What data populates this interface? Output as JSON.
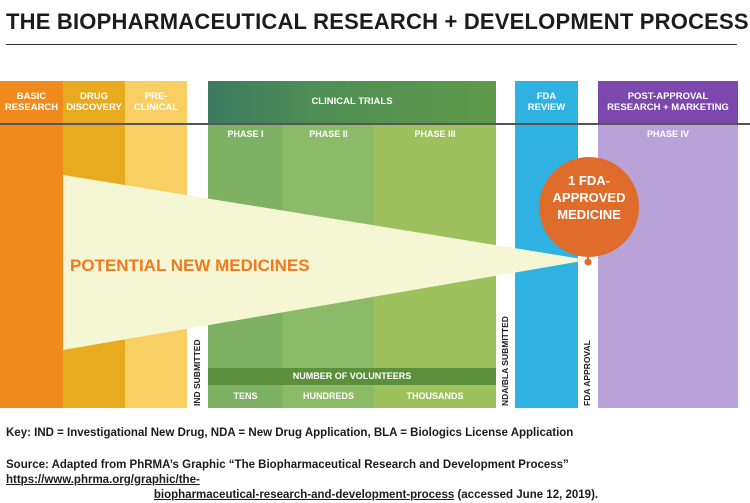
{
  "title": "THE BIOPHARMACEUTICAL RESEARCH + DEVELOPMENT PROCESS",
  "stages": {
    "basic_research": [
      "BASIC",
      "RESEARCH"
    ],
    "drug_discovery": [
      "DRUG",
      "DISCOVERY"
    ],
    "pre_clinical": [
      "PRE-",
      "CLINICAL"
    ],
    "clinical_trials": "CLINICAL TRIALS",
    "fda_review": [
      "FDA",
      "REVIEW"
    ],
    "post_approval": [
      "POST-APPROVAL",
      "RESEARCH + MARKETING"
    ]
  },
  "phases": {
    "phase_1": "PHASE I",
    "phase_2": "PHASE II",
    "phase_3": "PHASE III",
    "phase_4": "PHASE IV"
  },
  "milestones": {
    "ind": "IND SUBMITTED",
    "nda": "NDA/BLA SUBMITTED",
    "approval": "FDA APPROVAL"
  },
  "funnel_label": "POTENTIAL NEW MEDICINES",
  "result": [
    "1 FDA-",
    "APPROVED",
    "MEDICINE"
  ],
  "volunteers": {
    "label": "NUMBER OF VOLUNTEERS",
    "phase_1": "TENS",
    "phase_2": "HUNDREDS",
    "phase_3": "THOUSANDS"
  },
  "key": "Key: IND = Investigational New Drug, NDA = New Drug Application, BLA = Biologics License Application",
  "source": {
    "prefix": "Source: Adapted from PhRMA’s Graphic “The Biopharmaceutical Research and Development Process”",
    "link_line1": "https://www.phrma.org/graphic/the-",
    "link_line2": "biopharmaceutical-research-and-development-process",
    "suffix": "(accessed June 12, 2019)."
  },
  "colors": {
    "basic_research": "#f18a1c",
    "drug_discovery": "#e8ab1f",
    "pre_clinical": "#f8cf63",
    "phase_1": "#7fb164",
    "phase_2": "#8bbb67",
    "phase_3": "#9dc15d",
    "clinical_header": "#5b9a56",
    "fda_review": "#2fb2e1",
    "post_approval": "#b9a2d8",
    "post_approval_header": "#7d48ae",
    "funnel": "#f5f6d4",
    "circle": "#e06c2c",
    "funnel_text": "#f07b1f"
  }
}
